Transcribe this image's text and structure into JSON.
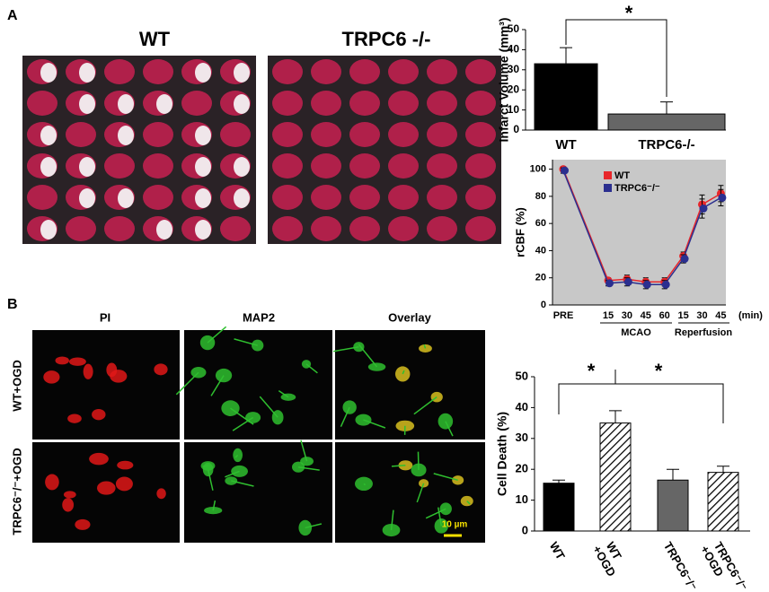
{
  "panels": [
    "A",
    "B"
  ],
  "brain_titles": [
    "WT",
    "TRPC6 -/-"
  ],
  "cell_columns": [
    "PI",
    "MAP2",
    "Overlay"
  ],
  "cell_rows": [
    "WT+OGD",
    "TRPC6⁻/⁻+OGD"
  ],
  "scale_bar": "10 µm",
  "chart_data": [
    {
      "type": "bar",
      "ylabel": "Infarct Volume (mm³)",
      "categories": [
        "WT",
        "TRPC6-/-"
      ],
      "values": [
        33,
        8
      ],
      "errors": [
        8,
        6
      ],
      "colors": [
        "#000000",
        "#666666"
      ],
      "ylim": [
        0,
        50
      ],
      "yticks": [
        0,
        10,
        20,
        30,
        40,
        50
      ],
      "annotations": [
        "*"
      ]
    },
    {
      "type": "line",
      "ylabel": "rCBF (%)",
      "categories": [
        "PRE",
        "15",
        "30",
        "45",
        "60",
        "15",
        "30",
        "45"
      ],
      "x_unit": "(min)",
      "groups": [
        "MCAO",
        "Reperfusion"
      ],
      "series": [
        {
          "name": "WT",
          "color": "#e8262a",
          "values": [
            100,
            18,
            19,
            17,
            17,
            36,
            74,
            82
          ],
          "errors": [
            2,
            2,
            3,
            3,
            3,
            3,
            7,
            6
          ]
        },
        {
          "name": "TRPC6⁻/⁻",
          "color": "#2b2f8f",
          "values": [
            99,
            16,
            17,
            15,
            15,
            34,
            71,
            79
          ],
          "errors": [
            2,
            2,
            3,
            3,
            3,
            3,
            7,
            6
          ]
        }
      ],
      "ylim": [
        0,
        107
      ],
      "yticks": [
        0,
        20,
        40,
        60,
        80,
        100
      ],
      "background": "#c8c8c8"
    },
    {
      "type": "bar",
      "ylabel": "Cell Death (%)",
      "categories": [
        [
          "WT"
        ],
        [
          "WT",
          "+OGD"
        ],
        [
          "TRPC6⁻/⁻"
        ],
        [
          "TRPC6⁻/⁻",
          "+OGD"
        ]
      ],
      "values": [
        15.5,
        35,
        16.5,
        19
      ],
      "errors": [
        1,
        4,
        3.5,
        2
      ],
      "colors": [
        "#000000",
        "#ffffff",
        "#666666",
        "#ffffff"
      ],
      "hatched": [
        false,
        true,
        false,
        true
      ],
      "ylim": [
        0,
        50
      ],
      "yticks": [
        0,
        10,
        20,
        30,
        40,
        50
      ],
      "annotations": [
        "*",
        "*"
      ]
    }
  ]
}
